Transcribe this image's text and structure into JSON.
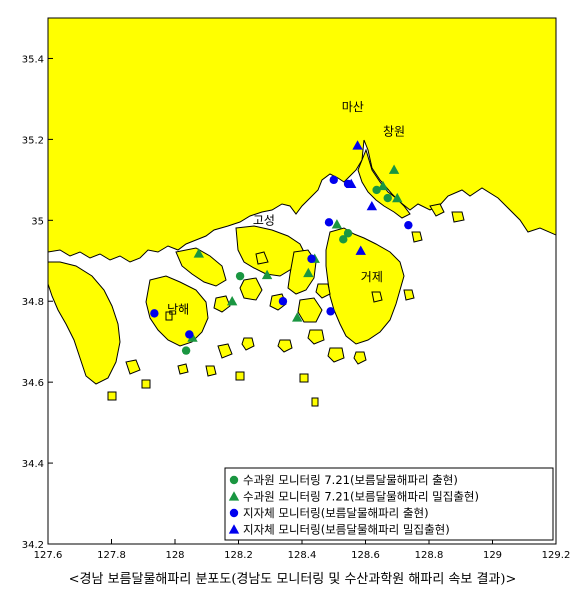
{
  "caption": "<경남 보름달물해파리 분포도(경남도 모니터링 및 수산과학원 해파리 속보 결과)>",
  "colors": {
    "land": "#ffff00",
    "sea": "#ffffff",
    "green": "#1a9641",
    "blue": "#0000ee",
    "outline": "#000000"
  },
  "axes": {
    "x_ticks": [
      "127.6",
      "127.8",
      "128",
      "128.2",
      "128.4",
      "128.6",
      "128.8",
      "129",
      "129.2"
    ],
    "x_values": [
      127.6,
      127.8,
      128.0,
      128.2,
      128.4,
      128.6,
      128.8,
      129.0,
      129.2
    ],
    "y_ticks": [
      "35.4",
      "35.2",
      "35",
      "34.8",
      "34.6",
      "34.4",
      "34.2"
    ],
    "y_values": [
      35.4,
      35.2,
      35.0,
      34.8,
      34.6,
      34.4,
      34.2
    ],
    "xlim": [
      127.6,
      129.2
    ],
    "ylim": [
      34.2,
      35.5
    ]
  },
  "places": [
    {
      "id": "masan",
      "label": "마산",
      "lon": 128.56,
      "lat": 35.27
    },
    {
      "id": "changwon",
      "label": "창원",
      "lon": 128.69,
      "lat": 35.21
    },
    {
      "id": "goseong",
      "label": "고성",
      "lon": 128.28,
      "lat": 34.99
    },
    {
      "id": "geoje",
      "label": "거제",
      "lon": 128.62,
      "lat": 34.85
    },
    {
      "id": "namhae",
      "label": "남해",
      "lon": 128.01,
      "lat": 34.77
    }
  ],
  "legend": [
    {
      "symbol": "circle",
      "color": "green",
      "label": "수과원 모니터링 7.21(보름달물해파리 출현)"
    },
    {
      "symbol": "triangle",
      "color": "green",
      "label": "수과원 모니터링 7.21(보름달물해파리 밀집출현)"
    },
    {
      "symbol": "circle",
      "color": "blue",
      "label": "지자체 모니터링(보름달물해파리 출현)"
    },
    {
      "symbol": "triangle",
      "color": "blue",
      "label": "지자체 모니터링(보름달물해파리 밀집출현)"
    }
  ],
  "stations": [
    {
      "series": "nifs_present",
      "symbol": "circle",
      "color": "green",
      "lon": 128.205,
      "lat": 34.862
    },
    {
      "series": "nifs_present",
      "symbol": "circle",
      "color": "green",
      "lon": 128.035,
      "lat": 34.678
    },
    {
      "series": "nifs_present",
      "symbol": "circle",
      "color": "green",
      "lon": 128.53,
      "lat": 34.953
    },
    {
      "series": "nifs_present",
      "symbol": "circle",
      "color": "green",
      "lon": 128.545,
      "lat": 34.968
    },
    {
      "series": "nifs_present",
      "symbol": "circle",
      "color": "green",
      "lon": 128.67,
      "lat": 35.055
    },
    {
      "series": "nifs_present",
      "symbol": "circle",
      "color": "green",
      "lon": 128.635,
      "lat": 35.075
    },
    {
      "series": "nifs_dense",
      "symbol": "triangle",
      "color": "green",
      "lon": 128.075,
      "lat": 34.918
    },
    {
      "series": "nifs_dense",
      "symbol": "triangle",
      "color": "green",
      "lon": 128.29,
      "lat": 34.865
    },
    {
      "series": "nifs_dense",
      "symbol": "triangle",
      "color": "green",
      "lon": 128.18,
      "lat": 34.8
    },
    {
      "series": "nifs_dense",
      "symbol": "triangle",
      "color": "green",
      "lon": 128.055,
      "lat": 34.71
    },
    {
      "series": "nifs_dense",
      "symbol": "triangle",
      "color": "green",
      "lon": 128.385,
      "lat": 34.76
    },
    {
      "series": "nifs_dense",
      "symbol": "triangle",
      "color": "green",
      "lon": 128.42,
      "lat": 34.87
    },
    {
      "series": "nifs_dense",
      "symbol": "triangle",
      "color": "green",
      "lon": 128.51,
      "lat": 34.99
    },
    {
      "series": "nifs_dense",
      "symbol": "triangle",
      "color": "green",
      "lon": 128.655,
      "lat": 35.085
    },
    {
      "series": "nifs_dense",
      "symbol": "triangle",
      "color": "green",
      "lon": 128.69,
      "lat": 35.125
    },
    {
      "series": "nifs_dense",
      "symbol": "triangle",
      "color": "green",
      "lon": 128.7,
      "lat": 35.055
    },
    {
      "series": "nifs_dense",
      "symbol": "triangle",
      "color": "green",
      "lon": 128.44,
      "lat": 34.905
    },
    {
      "series": "local_present",
      "symbol": "circle",
      "color": "blue",
      "lon": 127.935,
      "lat": 34.77
    },
    {
      "series": "local_present",
      "symbol": "circle",
      "color": "blue",
      "lon": 128.045,
      "lat": 34.718
    },
    {
      "series": "local_present",
      "symbol": "circle",
      "color": "blue",
      "lon": 128.34,
      "lat": 34.8
    },
    {
      "series": "local_present",
      "symbol": "circle",
      "color": "blue",
      "lon": 128.43,
      "lat": 34.905
    },
    {
      "series": "local_present",
      "symbol": "circle",
      "color": "blue",
      "lon": 128.485,
      "lat": 34.995
    },
    {
      "series": "local_present",
      "symbol": "circle",
      "color": "blue",
      "lon": 128.5,
      "lat": 35.1
    },
    {
      "series": "local_present",
      "symbol": "circle",
      "color": "blue",
      "lon": 128.545,
      "lat": 35.09
    },
    {
      "series": "local_present",
      "symbol": "circle",
      "color": "blue",
      "lon": 128.735,
      "lat": 34.988
    },
    {
      "series": "local_present",
      "symbol": "circle",
      "color": "blue",
      "lon": 128.49,
      "lat": 34.775
    },
    {
      "series": "local_dense",
      "symbol": "triangle",
      "color": "blue",
      "lon": 128.575,
      "lat": 35.185
    },
    {
      "series": "local_dense",
      "symbol": "triangle",
      "color": "blue",
      "lon": 128.555,
      "lat": 35.09
    },
    {
      "series": "local_dense",
      "symbol": "triangle",
      "color": "blue",
      "lon": 128.62,
      "lat": 35.035
    },
    {
      "series": "local_dense",
      "symbol": "triangle",
      "color": "blue",
      "lon": 128.585,
      "lat": 34.925
    }
  ]
}
